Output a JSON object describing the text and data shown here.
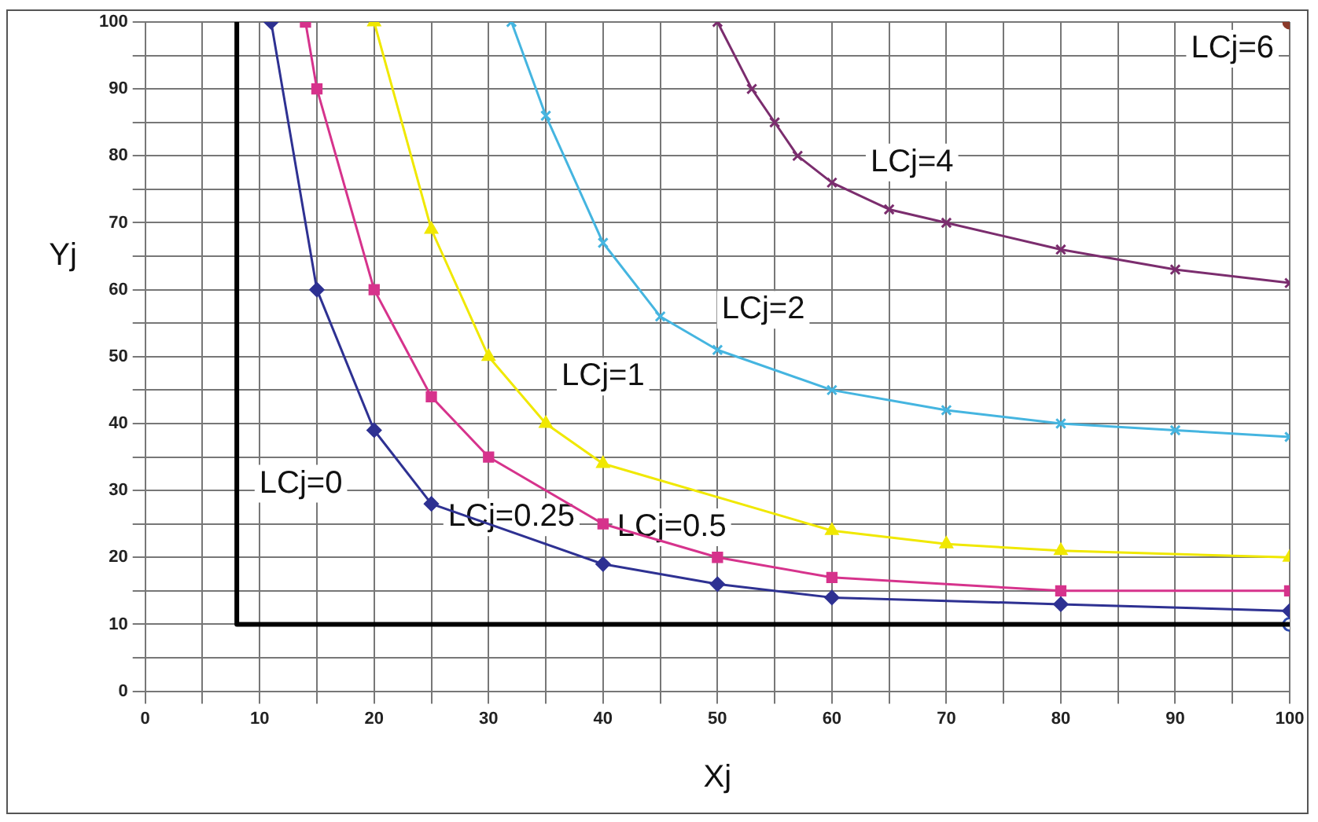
{
  "chart_data": {
    "type": "line",
    "xlabel": "Xj",
    "ylabel": "Yj",
    "xlim": [
      0,
      100
    ],
    "ylim": [
      0,
      100
    ],
    "xticks": [
      0,
      {
        "value": 5,
        "label": null
      },
      10,
      {
        "value": 15,
        "label": null
      },
      20,
      {
        "value": 25,
        "label": null
      },
      30,
      {
        "value": 35,
        "label": null
      },
      40,
      {
        "value": 45,
        "label": null
      },
      50,
      {
        "value": 55,
        "label": null
      },
      60,
      {
        "value": 65,
        "label": null
      },
      70,
      {
        "value": 75,
        "label": null
      },
      80,
      {
        "value": 85,
        "label": null
      },
      90,
      {
        "value": 95,
        "label": null
      },
      100
    ],
    "yticks": [
      0,
      {
        "value": 5,
        "label": null
      },
      10,
      {
        "value": 15,
        "label": null
      },
      20,
      {
        "value": 25,
        "label": null
      },
      30,
      {
        "value": 35,
        "label": null
      },
      40,
      {
        "value": 45,
        "label": null
      },
      50,
      {
        "value": 55,
        "label": null
      },
      60,
      {
        "value": 65,
        "label": null
      },
      70,
      {
        "value": 75,
        "label": null
      },
      80,
      {
        "value": 85,
        "label": null
      },
      90,
      {
        "value": 95,
        "label": null
      },
      100
    ],
    "grid": true,
    "legend": false,
    "series": [
      {
        "name": "LCj=0",
        "type": "line",
        "marker": "none",
        "color": "#000000",
        "x": [
          8,
          8,
          100
        ],
        "values": [
          100,
          10,
          10
        ]
      },
      {
        "name": "LCj=0.25",
        "type": "line",
        "marker": "diamond",
        "color": "#2e3192",
        "x": [
          11,
          15,
          20,
          25,
          40,
          50,
          60,
          80,
          100
        ],
        "values": [
          100,
          60,
          39,
          28,
          19,
          16,
          14,
          13,
          12
        ]
      },
      {
        "name": "LCj=0.5",
        "type": "line",
        "marker": "square",
        "color": "#d6338c",
        "x": [
          14,
          15,
          20,
          25,
          30,
          40,
          50,
          60,
          80,
          100
        ],
        "values": [
          100,
          90,
          60,
          44,
          35,
          25,
          20,
          17,
          15,
          15
        ]
      },
      {
        "name": "LCj=1",
        "type": "line",
        "marker": "triangle",
        "color": "#f0e800",
        "x": [
          20,
          25,
          30,
          35,
          40,
          60,
          70,
          80,
          100
        ],
        "values": [
          100,
          69,
          50,
          40,
          34,
          24,
          22,
          21,
          20
        ]
      },
      {
        "name": "LCj=2",
        "type": "line",
        "marker": "cross",
        "color": "#45b5e0",
        "x": [
          32,
          35,
          40,
          45,
          50,
          60,
          70,
          80,
          90,
          100
        ],
        "values": [
          100,
          86,
          67,
          56,
          51,
          45,
          42,
          40,
          39,
          38
        ]
      },
      {
        "name": "LCj=4",
        "type": "line",
        "marker": "cross",
        "color": "#7b2d6e",
        "x": [
          50,
          53,
          55,
          57,
          60,
          65,
          70,
          80,
          90,
          100
        ],
        "values": [
          100,
          90,
          85,
          80,
          76,
          72,
          70,
          66,
          63,
          61
        ]
      },
      {
        "name": "LCj=6",
        "type": "scatter",
        "marker": "circle",
        "color": "#8b3a2a",
        "x": [
          100
        ],
        "values": [
          100
        ]
      },
      {
        "type": "scatter",
        "marker": "circle",
        "color": "#2e4bb0",
        "x": [
          100
        ],
        "values": [
          10
        ]
      }
    ]
  }
}
